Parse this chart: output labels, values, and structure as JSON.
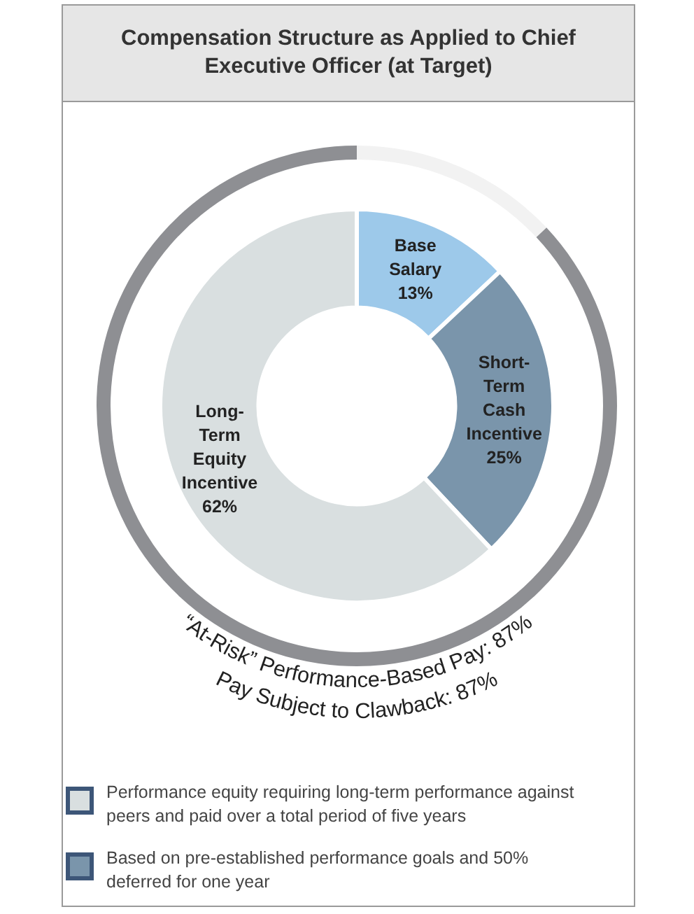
{
  "chart_data": {
    "type": "donut",
    "title": "Compensation Structure as Applied to Chief Executive Officer (at Target)",
    "categories": [
      "Base Salary",
      "Short-Term Cash Incentive",
      "Long-Term Equity Incentive"
    ],
    "series": [
      {
        "values": [
          13,
          25,
          62
        ],
        "colors": [
          "#9dc9ea",
          "#7a95ab",
          "#d9dfe0"
        ],
        "value_labels": [
          "13%",
          "25%",
          "62%"
        ]
      },
      {
        "values": [
          13,
          87,
          null
        ],
        "colors": [
          "#f2f2f2",
          "#8e8f93",
          null
        ]
      }
    ],
    "legend": false,
    "annotations": [
      "“At-Risk” Performance-Based Pay: 87%",
      "Pay Subject to Clawback: 87%",
      "Performance equity requiring long-term performance against peers and paid over a total period of five years",
      "Based on pre-established performance goals and 50% deferred for one year"
    ]
  }
}
